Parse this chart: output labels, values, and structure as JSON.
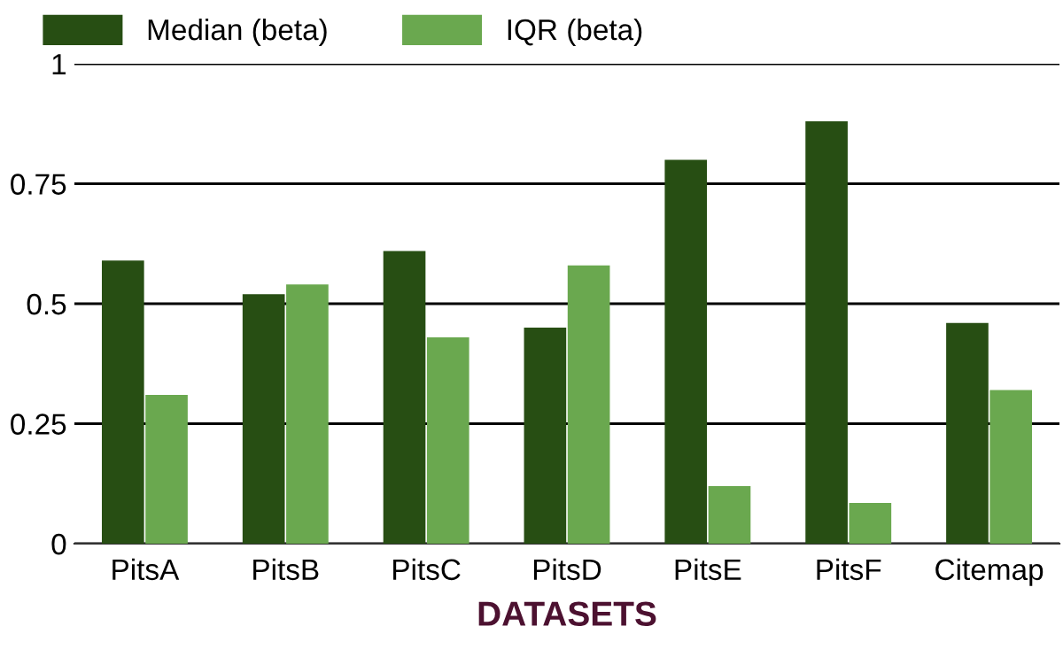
{
  "chart_data": {
    "type": "bar",
    "xlabel": "DATASETS",
    "categories": [
      "PitsA",
      "PitsB",
      "PitsC",
      "PitsD",
      "PitsE",
      "PitsF",
      "Citemap"
    ],
    "series": [
      {
        "name": "Median (beta)",
        "color": "#274e13",
        "values": [
          0.59,
          0.52,
          0.61,
          0.45,
          0.8,
          0.88,
          0.46
        ]
      },
      {
        "name": "IQR (beta)",
        "color": "#6aa84f",
        "values": [
          0.31,
          0.54,
          0.43,
          0.58,
          0.12,
          0.085,
          0.32
        ]
      }
    ],
    "ylim": [
      0,
      1
    ],
    "yticks": [
      0,
      0.25,
      0.5,
      0.75,
      1
    ],
    "grid": "y",
    "legend": "top left"
  }
}
